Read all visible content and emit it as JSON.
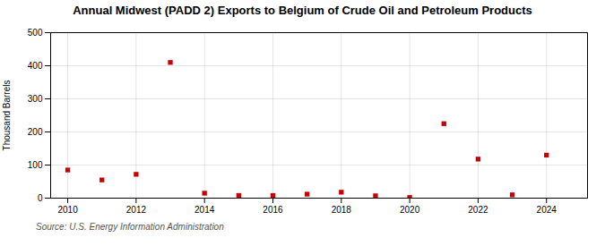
{
  "chart_data": {
    "type": "scatter",
    "title": "Annual Midwest (PADD 2) Exports to Belgium of Crude Oil and Petroleum Products",
    "ylabel": "Thousand Barrels",
    "source": "Source: U.S. Energy Information Administration",
    "x": [
      2010,
      2011,
      2012,
      2013,
      2014,
      2015,
      2016,
      2017,
      2018,
      2019,
      2020,
      2021,
      2022,
      2023,
      2024
    ],
    "values": [
      85,
      55,
      72,
      410,
      15,
      8,
      8,
      12,
      18,
      7,
      2,
      225,
      118,
      10,
      130
    ],
    "color": "#cc0000",
    "marker": "square",
    "grid": true,
    "xlim": [
      2009.5,
      2025.2
    ],
    "ylim": [
      0,
      500
    ],
    "xticks": [
      2010,
      2012,
      2014,
      2016,
      2018,
      2020,
      2022,
      2024
    ],
    "yticks": [
      0,
      100,
      200,
      300,
      400,
      500
    ]
  }
}
